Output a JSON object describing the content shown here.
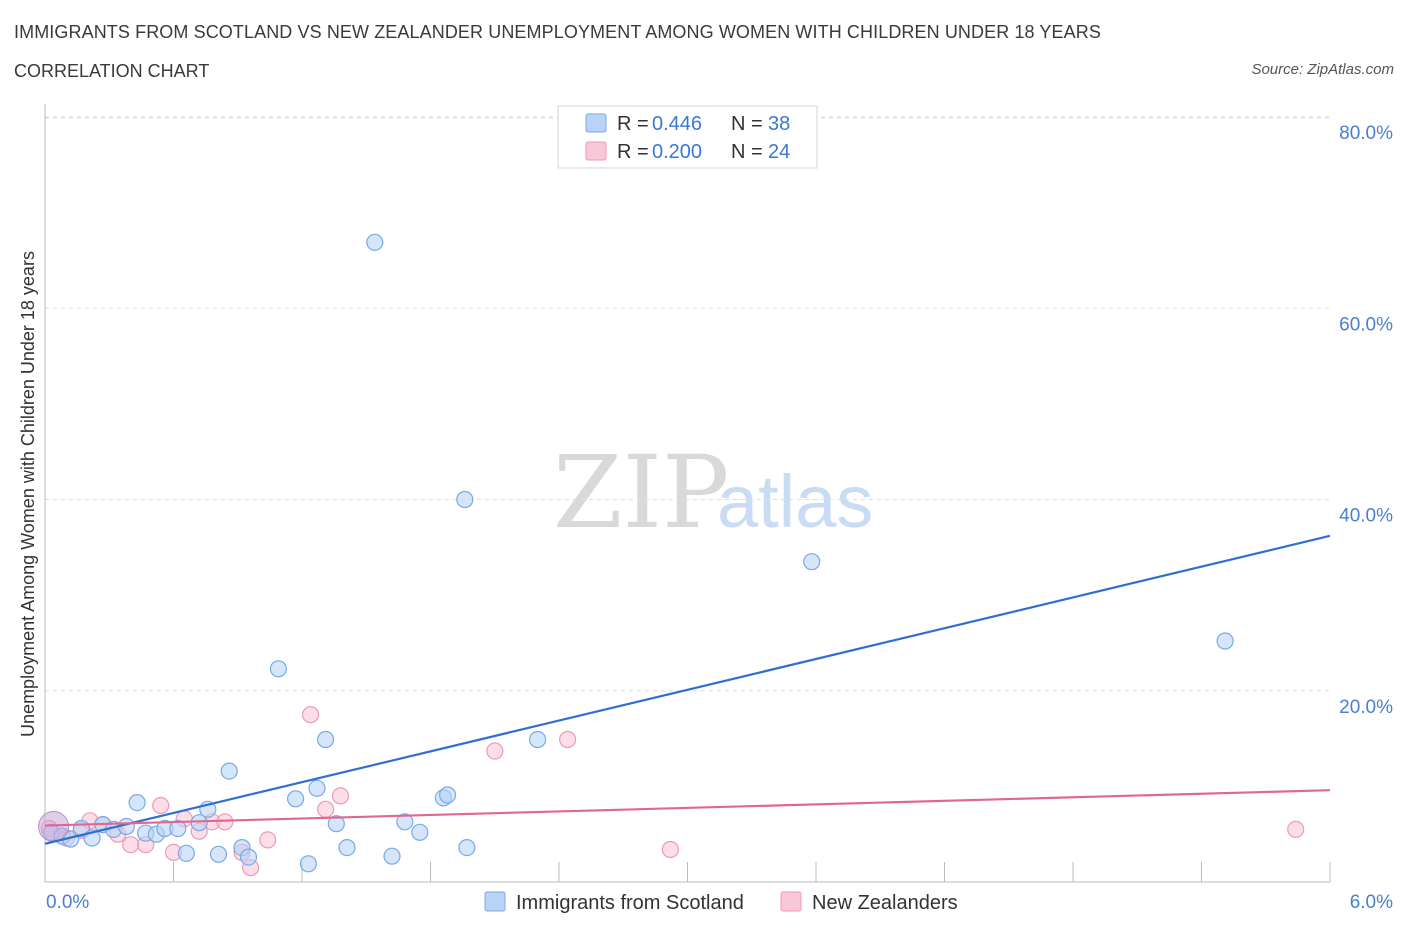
{
  "header": {
    "title": "IMMIGRANTS FROM SCOTLAND VS NEW ZEALANDER UNEMPLOYMENT AMONG WOMEN WITH CHILDREN UNDER 18 YEARS",
    "subtitle": "CORRELATION CHART",
    "source": "Source: ZipAtlas.com"
  },
  "watermark": {
    "zip": "ZIP",
    "atlas": "atlas"
  },
  "colors": {
    "blue_fill": "#b9d3f6",
    "blue_stroke": "#7aa9e6",
    "blue_line": "#2f6fd0",
    "pink_fill": "#f8c8d8",
    "pink_stroke": "#ee9ab6",
    "pink_line": "#e06890",
    "axis_text": "#4a7fd0",
    "grid": "#dddddd"
  },
  "legend": {
    "rows": [
      {
        "r_label": "R = ",
        "r_value": "0.446",
        "n_label": "N = ",
        "n_value": "38",
        "color": "blue"
      },
      {
        "r_label": "R = ",
        "r_value": "0.200",
        "n_label": "N = ",
        "n_value": "24",
        "color": "pink"
      }
    ]
  },
  "chart_data": {
    "type": "scatter",
    "title": "IMMIGRANTS FROM SCOTLAND VS NEW ZEALANDER UNEMPLOYMENT AMONG WOMEN WITH CHILDREN UNDER 18 YEARS",
    "xlabel": "",
    "ylabel": "Unemployment Among Women with Children Under 18 years",
    "xlim": [
      0,
      6
    ],
    "ylim": [
      0,
      80
    ],
    "x_tick_labels": [
      "0.0%",
      "6.0%"
    ],
    "y_ticks": [
      20,
      40,
      60,
      80
    ],
    "y_tick_labels": [
      "20.0%",
      "40.0%",
      "60.0%",
      "80.0%"
    ],
    "legend_position": "top-center",
    "series": [
      {
        "name": "Immigrants from Scotland",
        "color": "blue",
        "R": 0.446,
        "N": 38,
        "trend": {
          "x0": 0.0,
          "y0": 4.0,
          "x1": 6.0,
          "y1": 36.2
        },
        "points": [
          [
            0.03,
            5.2
          ],
          [
            0.08,
            4.8
          ],
          [
            0.12,
            4.5
          ],
          [
            0.17,
            5.6
          ],
          [
            0.22,
            4.6
          ],
          [
            0.27,
            6.0
          ],
          [
            0.32,
            5.5
          ],
          [
            0.38,
            5.8
          ],
          [
            0.43,
            8.3
          ],
          [
            0.47,
            5.1
          ],
          [
            0.52,
            5.0
          ],
          [
            0.56,
            5.6
          ],
          [
            0.62,
            5.6
          ],
          [
            0.66,
            3.0
          ],
          [
            0.72,
            6.2
          ],
          [
            0.76,
            7.6
          ],
          [
            0.81,
            2.9
          ],
          [
            0.86,
            11.6
          ],
          [
            0.92,
            3.6
          ],
          [
            0.95,
            2.6
          ],
          [
            1.09,
            22.3
          ],
          [
            1.17,
            8.7
          ],
          [
            1.23,
            1.9
          ],
          [
            1.27,
            9.8
          ],
          [
            1.31,
            14.9
          ],
          [
            1.36,
            6.1
          ],
          [
            1.41,
            3.6
          ],
          [
            1.54,
            66.9
          ],
          [
            1.62,
            2.7
          ],
          [
            1.68,
            6.3
          ],
          [
            1.75,
            5.2
          ],
          [
            1.86,
            8.8
          ],
          [
            1.88,
            9.1
          ],
          [
            1.96,
            40.0
          ],
          [
            1.97,
            3.6
          ],
          [
            2.3,
            14.9
          ],
          [
            3.58,
            33.5
          ],
          [
            5.51,
            25.2
          ]
        ]
      },
      {
        "name": "New Zealanders",
        "color": "pink",
        "R": 0.2,
        "N": 24,
        "trend": {
          "x0": 0.0,
          "y0": 5.9,
          "x1": 6.0,
          "y1": 9.6
        },
        "points": [
          [
            0.02,
            5.6
          ],
          [
            0.1,
            4.6
          ],
          [
            0.17,
            5.4
          ],
          [
            0.21,
            6.4
          ],
          [
            0.27,
            6.0
          ],
          [
            0.34,
            5.0
          ],
          [
            0.4,
            3.9
          ],
          [
            0.47,
            3.9
          ],
          [
            0.54,
            8.0
          ],
          [
            0.6,
            3.1
          ],
          [
            0.65,
            6.6
          ],
          [
            0.72,
            5.3
          ],
          [
            0.78,
            6.3
          ],
          [
            0.84,
            6.3
          ],
          [
            0.92,
            3.1
          ],
          [
            0.96,
            1.5
          ],
          [
            1.04,
            4.4
          ],
          [
            1.24,
            17.5
          ],
          [
            1.31,
            7.6
          ],
          [
            1.38,
            9.0
          ],
          [
            2.1,
            13.7
          ],
          [
            2.44,
            14.9
          ],
          [
            2.92,
            3.4
          ],
          [
            5.84,
            5.5
          ]
        ]
      }
    ]
  },
  "bottom_legend": {
    "items": [
      {
        "label": "Immigrants from Scotland",
        "color": "blue"
      },
      {
        "label": "New Zealanders",
        "color": "pink"
      }
    ]
  }
}
